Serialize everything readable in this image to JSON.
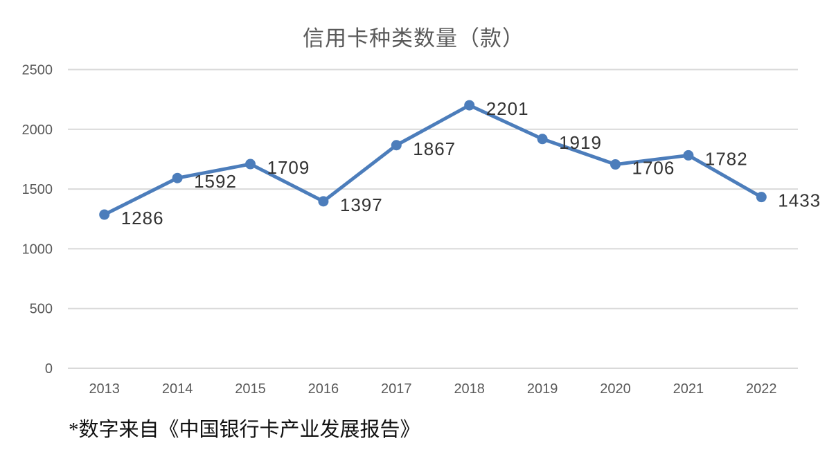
{
  "title": {
    "text": "信用卡种类数量（款）"
  },
  "footnote": {
    "text": "*数字来自《中国银行卡产业发展报告》"
  },
  "colors": {
    "line": "#4C7DBB",
    "marker": "#4C7DBB",
    "gridline": "#D9D9D9",
    "axis_text": "#595959",
    "data_label": "#333333",
    "title_text": "#595959",
    "background": "#FFFFFF"
  },
  "chart_data": {
    "type": "line",
    "title": "信用卡种类数量（款）",
    "categories": [
      "2013",
      "2014",
      "2015",
      "2016",
      "2017",
      "2018",
      "2019",
      "2020",
      "2021",
      "2022"
    ],
    "series": [
      {
        "name": "信用卡种类数量",
        "values": [
          1286,
          1592,
          1709,
          1397,
          1867,
          2201,
          1919,
          1706,
          1782,
          1433
        ]
      }
    ],
    "data_labels": [
      1286,
      1592,
      1709,
      1397,
      1867,
      2201,
      1919,
      1706,
      1782,
      1433
    ],
    "xlabel": "",
    "ylabel": "",
    "ylim": [
      0,
      2500
    ],
    "yticks": [
      0,
      500,
      1000,
      1500,
      2000,
      2500
    ],
    "grid": true,
    "legend": false,
    "marker": "circle",
    "annotation": "*数字来自《中国银行卡产业发展报告》"
  }
}
